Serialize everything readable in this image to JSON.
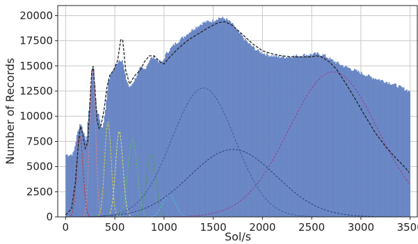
{
  "chart_data": {
    "type": "area",
    "title": "",
    "xlabel": "Sol/s",
    "ylabel": "Number of Records",
    "xlim": [
      -80,
      3580
    ],
    "ylim": [
      0,
      21000
    ],
    "xticks": [
      0,
      500,
      1000,
      1500,
      2000,
      2500,
      3000,
      3500
    ],
    "yticks": [
      0,
      2500,
      5000,
      7500,
      10000,
      12500,
      15000,
      17500,
      20000
    ],
    "grid": true,
    "histogram": {
      "color": "#6a87c5",
      "bin_width": 10,
      "x_range": [
        0,
        3490
      ],
      "points": [
        [
          0,
          6200
        ],
        [
          40,
          6150
        ],
        [
          80,
          6300
        ],
        [
          120,
          8300
        ],
        [
          150,
          9400
        ],
        [
          175,
          8600
        ],
        [
          210,
          7600
        ],
        [
          245,
          11500
        ],
        [
          270,
          15100
        ],
        [
          285,
          14700
        ],
        [
          310,
          10900
        ],
        [
          340,
          9900
        ],
        [
          370,
          8700
        ],
        [
          400,
          10200
        ],
        [
          430,
          13200
        ],
        [
          460,
          14200
        ],
        [
          500,
          14900
        ],
        [
          540,
          15600
        ],
        [
          575,
          15600
        ],
        [
          610,
          13800
        ],
        [
          650,
          12800
        ],
        [
          700,
          13600
        ],
        [
          760,
          14800
        ],
        [
          800,
          14600
        ],
        [
          860,
          15700
        ],
        [
          900,
          15900
        ],
        [
          940,
          15500
        ],
        [
          980,
          15300
        ],
        [
          1020,
          16200
        ],
        [
          1100,
          17100
        ],
        [
          1200,
          17900
        ],
        [
          1300,
          18700
        ],
        [
          1400,
          19300
        ],
        [
          1500,
          19500
        ],
        [
          1560,
          19800
        ],
        [
          1620,
          19700
        ],
        [
          1680,
          19300
        ],
        [
          1750,
          18400
        ],
        [
          1850,
          17300
        ],
        [
          1950,
          16500
        ],
        [
          2050,
          16100
        ],
        [
          2150,
          15900
        ],
        [
          2250,
          15900
        ],
        [
          2350,
          16000
        ],
        [
          2450,
          16100
        ],
        [
          2550,
          16200
        ],
        [
          2620,
          16100
        ],
        [
          2700,
          15600
        ],
        [
          2800,
          15100
        ],
        [
          2900,
          14700
        ],
        [
          3000,
          14300
        ],
        [
          3100,
          13900
        ],
        [
          3200,
          13600
        ],
        [
          3300,
          13300
        ],
        [
          3400,
          12900
        ],
        [
          3490,
          12500
        ]
      ]
    },
    "total_fit": {
      "color": "#222222",
      "style": "dashed",
      "points": [
        [
          0,
          200
        ],
        [
          60,
          800
        ],
        [
          100,
          3500
        ],
        [
          130,
          7300
        ],
        [
          150,
          9000
        ],
        [
          170,
          8400
        ],
        [
          200,
          6800
        ],
        [
          225,
          7400
        ],
        [
          245,
          11000
        ],
        [
          265,
          14400
        ],
        [
          280,
          15000
        ],
        [
          300,
          12500
        ],
        [
          320,
          9600
        ],
        [
          340,
          8800
        ],
        [
          360,
          9100
        ],
        [
          390,
          10600
        ],
        [
          420,
          12900
        ],
        [
          450,
          14100
        ],
        [
          490,
          14600
        ],
        [
          530,
          15600
        ],
        [
          560,
          17600
        ],
        [
          580,
          17600
        ],
        [
          610,
          14600
        ],
        [
          650,
          13200
        ],
        [
          700,
          14000
        ],
        [
          760,
          14600
        ],
        [
          800,
          15400
        ],
        [
          850,
          16000
        ],
        [
          900,
          16000
        ],
        [
          960,
          15400
        ],
        [
          1000,
          15200
        ],
        [
          1050,
          15800
        ],
        [
          1150,
          16800
        ],
        [
          1250,
          17600
        ],
        [
          1350,
          18200
        ],
        [
          1450,
          18800
        ],
        [
          1550,
          19300
        ],
        [
          1620,
          19400
        ],
        [
          1700,
          19000
        ],
        [
          1800,
          18100
        ],
        [
          1900,
          17200
        ],
        [
          2000,
          16500
        ],
        [
          2100,
          16200
        ],
        [
          2200,
          16000
        ],
        [
          2300,
          15900
        ],
        [
          2400,
          15900
        ],
        [
          2500,
          15900
        ],
        [
          2550,
          16000
        ],
        [
          2600,
          15900
        ],
        [
          2680,
          15400
        ],
        [
          2750,
          14700
        ],
        [
          2850,
          13200
        ],
        [
          2950,
          11600
        ],
        [
          3050,
          9900
        ],
        [
          3150,
          8300
        ],
        [
          3250,
          7000
        ],
        [
          3350,
          5900
        ],
        [
          3450,
          4900
        ],
        [
          3490,
          4400
        ]
      ]
    },
    "components": [
      {
        "shape": "gauss",
        "color": "#d62728",
        "mu": 145,
        "sigma": 32,
        "amp": 8000
      },
      {
        "shape": "gauss",
        "color": "#e08080",
        "mu": 275,
        "sigma": 30,
        "amp": 14600
      },
      {
        "shape": "gauss",
        "color": "#d6d633",
        "mu": 430,
        "sigma": 33,
        "amp": 9400
      },
      {
        "shape": "gauss",
        "color": "#e8e860",
        "mu": 545,
        "sigma": 37,
        "amp": 8500
      },
      {
        "shape": "gauss",
        "color": "#5bbf5b",
        "mu": 680,
        "sigma": 48,
        "amp": 7700
      },
      {
        "shape": "gauss",
        "color": "#44a044",
        "mu": 870,
        "sigma": 48,
        "amp": 6200
      },
      {
        "shape": "gauss",
        "color": "#4fc0e0",
        "mu": 1050,
        "sigma": 65,
        "amp": 2200
      },
      {
        "shape": "gauss",
        "color": "#3a5a9a",
        "mu": 1400,
        "sigma": 320,
        "amp": 12800
      },
      {
        "shape": "gauss",
        "color": "#2a3d7a",
        "mu": 1700,
        "sigma": 440,
        "amp": 6700
      },
      {
        "shape": "gauss",
        "color": "#9a3a8a",
        "mu": 2720,
        "sigma": 450,
        "amp": 14400
      }
    ]
  }
}
